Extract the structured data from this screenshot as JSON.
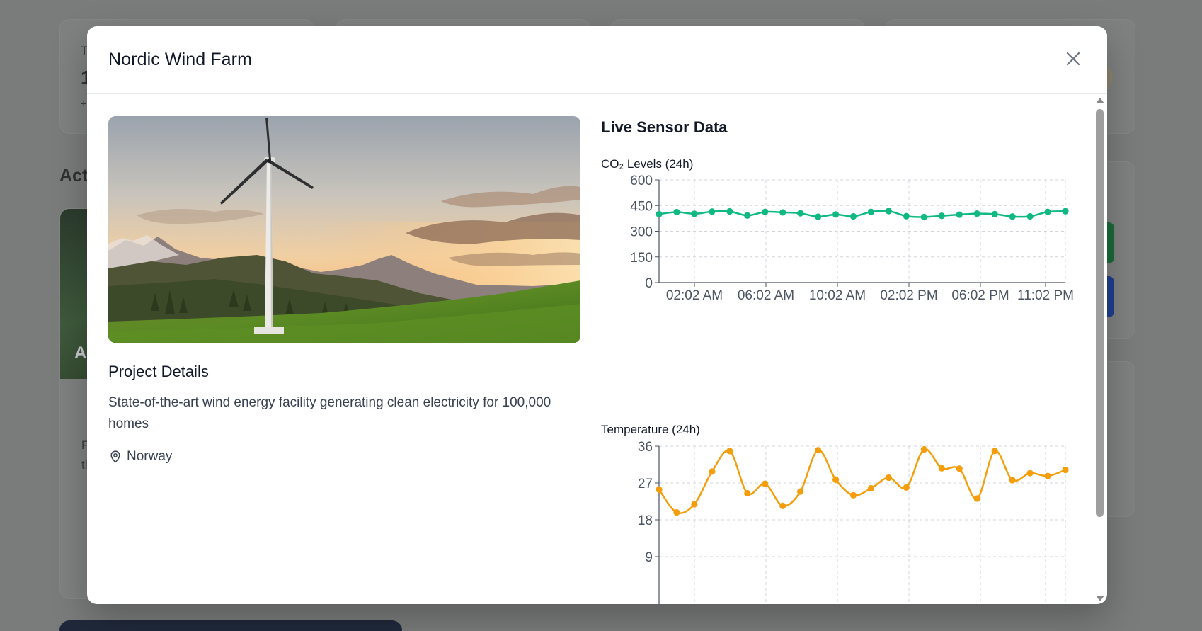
{
  "background": {
    "card_letters": [
      "T",
      "1",
      "+"
    ],
    "section_heading_fragment": "Acti",
    "image_letter": "A",
    "text_fragments": [
      "P",
      "tl"
    ]
  },
  "modal": {
    "title": "Nordic Wind Farm",
    "close_icon": "close-icon",
    "hero_icon": "wind-turbine-landscape-image",
    "details_title": "Project Details",
    "description": "State-of-the-art wind energy facility generating clean electricity for 100,000 homes",
    "location": "Norway",
    "location_icon": "map-pin-icon",
    "sensor_title": "Live Sensor Data"
  },
  "colors": {
    "co2_line": "#10b981",
    "temp_line": "#f59e0b",
    "grid": "#d1d5db"
  },
  "chart_data": [
    {
      "type": "line",
      "title": "CO₂ Levels (24h)",
      "x_ticks": [
        "02:02 AM",
        "06:02 AM",
        "10:02 AM",
        "02:02 PM",
        "06:02 PM",
        "11:02 PM"
      ],
      "y_ticks": [
        0,
        150,
        300,
        450,
        600
      ],
      "ylim": [
        0,
        600
      ],
      "grid": true,
      "series": [
        {
          "values": [
            400,
            412,
            402,
            415,
            416,
            392,
            413,
            410,
            405,
            385,
            398,
            387,
            413,
            418,
            388,
            383,
            390,
            397,
            403,
            400,
            386,
            387,
            413,
            417
          ]
        }
      ]
    },
    {
      "type": "line",
      "title": "Temperature (24h)",
      "y_ticks": [
        9,
        18,
        27,
        36
      ],
      "ylim": [
        0,
        36
      ],
      "grid": true,
      "series": [
        {
          "values": [
            25.4,
            19.8,
            21.8,
            29.8,
            34.8,
            24.5,
            26.8,
            21.4,
            24.9,
            35.0,
            27.8,
            24.0,
            25.7,
            28.3,
            25.9,
            35.2,
            30.6,
            30.5,
            23.2,
            34.8,
            27.7,
            29.4,
            28.7,
            30.2
          ]
        }
      ]
    }
  ]
}
